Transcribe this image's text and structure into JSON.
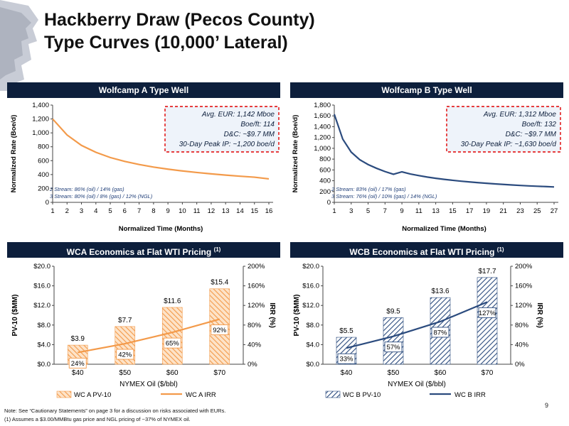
{
  "header": {
    "title_line1": "Hackberry Draw (Pecos County)",
    "title_line2": "Type Curves (10,000’ Lateral)"
  },
  "panels": {
    "wca_type": "Wolfcamp A Type Well",
    "wcb_type": "Wolfcamp B Type Well",
    "wca_econ": "WCA Economics at Flat WTI Pricing",
    "wcb_econ": "WCB Economics at Flat WTI Pricing",
    "footnote_ref": "(1)"
  },
  "colors": {
    "navy": "#0d1f3c",
    "orange": "#f39a4a",
    "blue": "#2b4b7e",
    "red_dash": "#e00000"
  },
  "chart_data": [
    {
      "id": "wca_type",
      "type": "line",
      "xlabel": "Normalized Time (Months)",
      "ylabel": "Normalized Rate (Boe/d)",
      "x": [
        1,
        2,
        3,
        4,
        5,
        6,
        7,
        8,
        9,
        10,
        11,
        12,
        13,
        14,
        15,
        16
      ],
      "series": [
        {
          "values": [
            1200,
            970,
            820,
            720,
            645,
            590,
            545,
            508,
            478,
            452,
            430,
            410,
            392,
            376,
            362,
            338
          ]
        }
      ],
      "ylim": [
        0,
        1400
      ],
      "yticks": [
        "0",
        "200",
        "400",
        "600",
        "800",
        "1,000",
        "1,200",
        "1,400"
      ],
      "xticks": [
        "1",
        "2",
        "3",
        "4",
        "5",
        "6",
        "7",
        "8",
        "9",
        "10",
        "11",
        "12",
        "13",
        "14",
        "15",
        "16"
      ],
      "box": [
        "Avg. EUR:  1,142 Mboe",
        "Boe/ft:  114",
        "D&C:  ~$9.7 MM",
        "30-Day Peak IP: ~1,200 boe/d"
      ],
      "stream": [
        "2 Stream: 86% (oil)  / 14% (gas)",
        "3 Stream: 80% (oil)  / 8% (gas) / 12% (NGL)"
      ]
    },
    {
      "id": "wcb_type",
      "type": "line",
      "xlabel": "Normalized Time (Months)",
      "ylabel": "Normalized Rate (Boe/d)",
      "x": [
        1,
        2,
        3,
        4,
        5,
        6,
        7,
        8,
        9,
        10,
        11,
        12,
        13,
        14,
        15,
        16,
        17,
        18,
        19,
        20,
        21,
        22,
        23,
        24,
        25,
        26,
        27
      ],
      "series": [
        {
          "values": [
            1630,
            1170,
            930,
            790,
            700,
            630,
            570,
            520,
            565,
            525,
            495,
            468,
            445,
            425,
            408,
            392,
            378,
            365,
            353,
            342,
            332,
            322,
            313,
            305,
            298,
            292,
            285
          ]
        }
      ],
      "ylim": [
        0,
        1800
      ],
      "yticks": [
        "0",
        "200",
        "400",
        "600",
        "800",
        "1,000",
        "1,200",
        "1,400",
        "1,600",
        "1,800"
      ],
      "xticks": [
        "1",
        "3",
        "5",
        "7",
        "9",
        "11",
        "13",
        "15",
        "17",
        "19",
        "21",
        "23",
        "25",
        "27"
      ],
      "box": [
        "Avg. EUR:  1,312 Mboe",
        "Boe/ft:  132",
        "D&C:  ~$9.7 MM",
        "30-Day Peak IP: ~1,630 boe/d"
      ],
      "stream": [
        "2 Stream: 83% (oil)  / 17% (gas)",
        "3 Stream: 76% (oil)  / 10% (gas) / 14% (NGL)"
      ]
    },
    {
      "id": "wca_econ",
      "type": "bar",
      "categories": [
        "$40",
        "$50",
        "$60",
        "$70"
      ],
      "xlabel": "NYMEX Oil ($/bbl)",
      "ylabel": "PV-10 ($MM)",
      "y2label": "IRR (%)",
      "bar_values": [
        3.9,
        7.7,
        11.6,
        15.4
      ],
      "bar_labels": [
        "$3.9",
        "$7.7",
        "$11.6",
        "$15.4"
      ],
      "irr_values": [
        24,
        42,
        65,
        92
      ],
      "irr_labels": [
        "24%",
        "42%",
        "65%",
        "92%"
      ],
      "ylim": [
        0,
        20
      ],
      "y2lim": [
        0,
        200
      ],
      "yticks": [
        "$0.0",
        "$4.0",
        "$8.0",
        "$12.0",
        "$16.0",
        "$20.0"
      ],
      "y2ticks": [
        "0%",
        "40%",
        "80%",
        "120%",
        "160%",
        "200%"
      ],
      "legend": [
        "WC A PV-10",
        "WC A IRR"
      ]
    },
    {
      "id": "wcb_econ",
      "type": "bar",
      "categories": [
        "$40",
        "$50",
        "$60",
        "$70"
      ],
      "xlabel": "NYMEX Oil ($/bbl)",
      "ylabel": "PV-10 ($MM)",
      "y2label": "IRR (%)",
      "bar_values": [
        5.5,
        9.5,
        13.6,
        17.7
      ],
      "bar_labels": [
        "$5.5",
        "$9.5",
        "$13.6",
        "$17.7"
      ],
      "irr_values": [
        33,
        57,
        87,
        127
      ],
      "irr_labels": [
        "33%",
        "57%",
        "87%",
        "127%"
      ],
      "ylim": [
        0,
        20
      ],
      "y2lim": [
        0,
        200
      ],
      "yticks": [
        "$0.0",
        "$4.0",
        "$8.0",
        "$12.0",
        "$16.0",
        "$20.0"
      ],
      "y2ticks": [
        "0%",
        "40%",
        "80%",
        "120%",
        "160%",
        "200%"
      ],
      "legend": [
        "WC B PV-10",
        "WC B IRR"
      ]
    }
  ],
  "notes": {
    "line1": "Note: See “Cautionary Statements” on page 3 for a discussion on risks associated with EURs.",
    "line2": "(1)     Assumes a $3.00/MMBtu gas price and NGL pricing of ~37% of NYMEX oil."
  },
  "page_number": "9"
}
